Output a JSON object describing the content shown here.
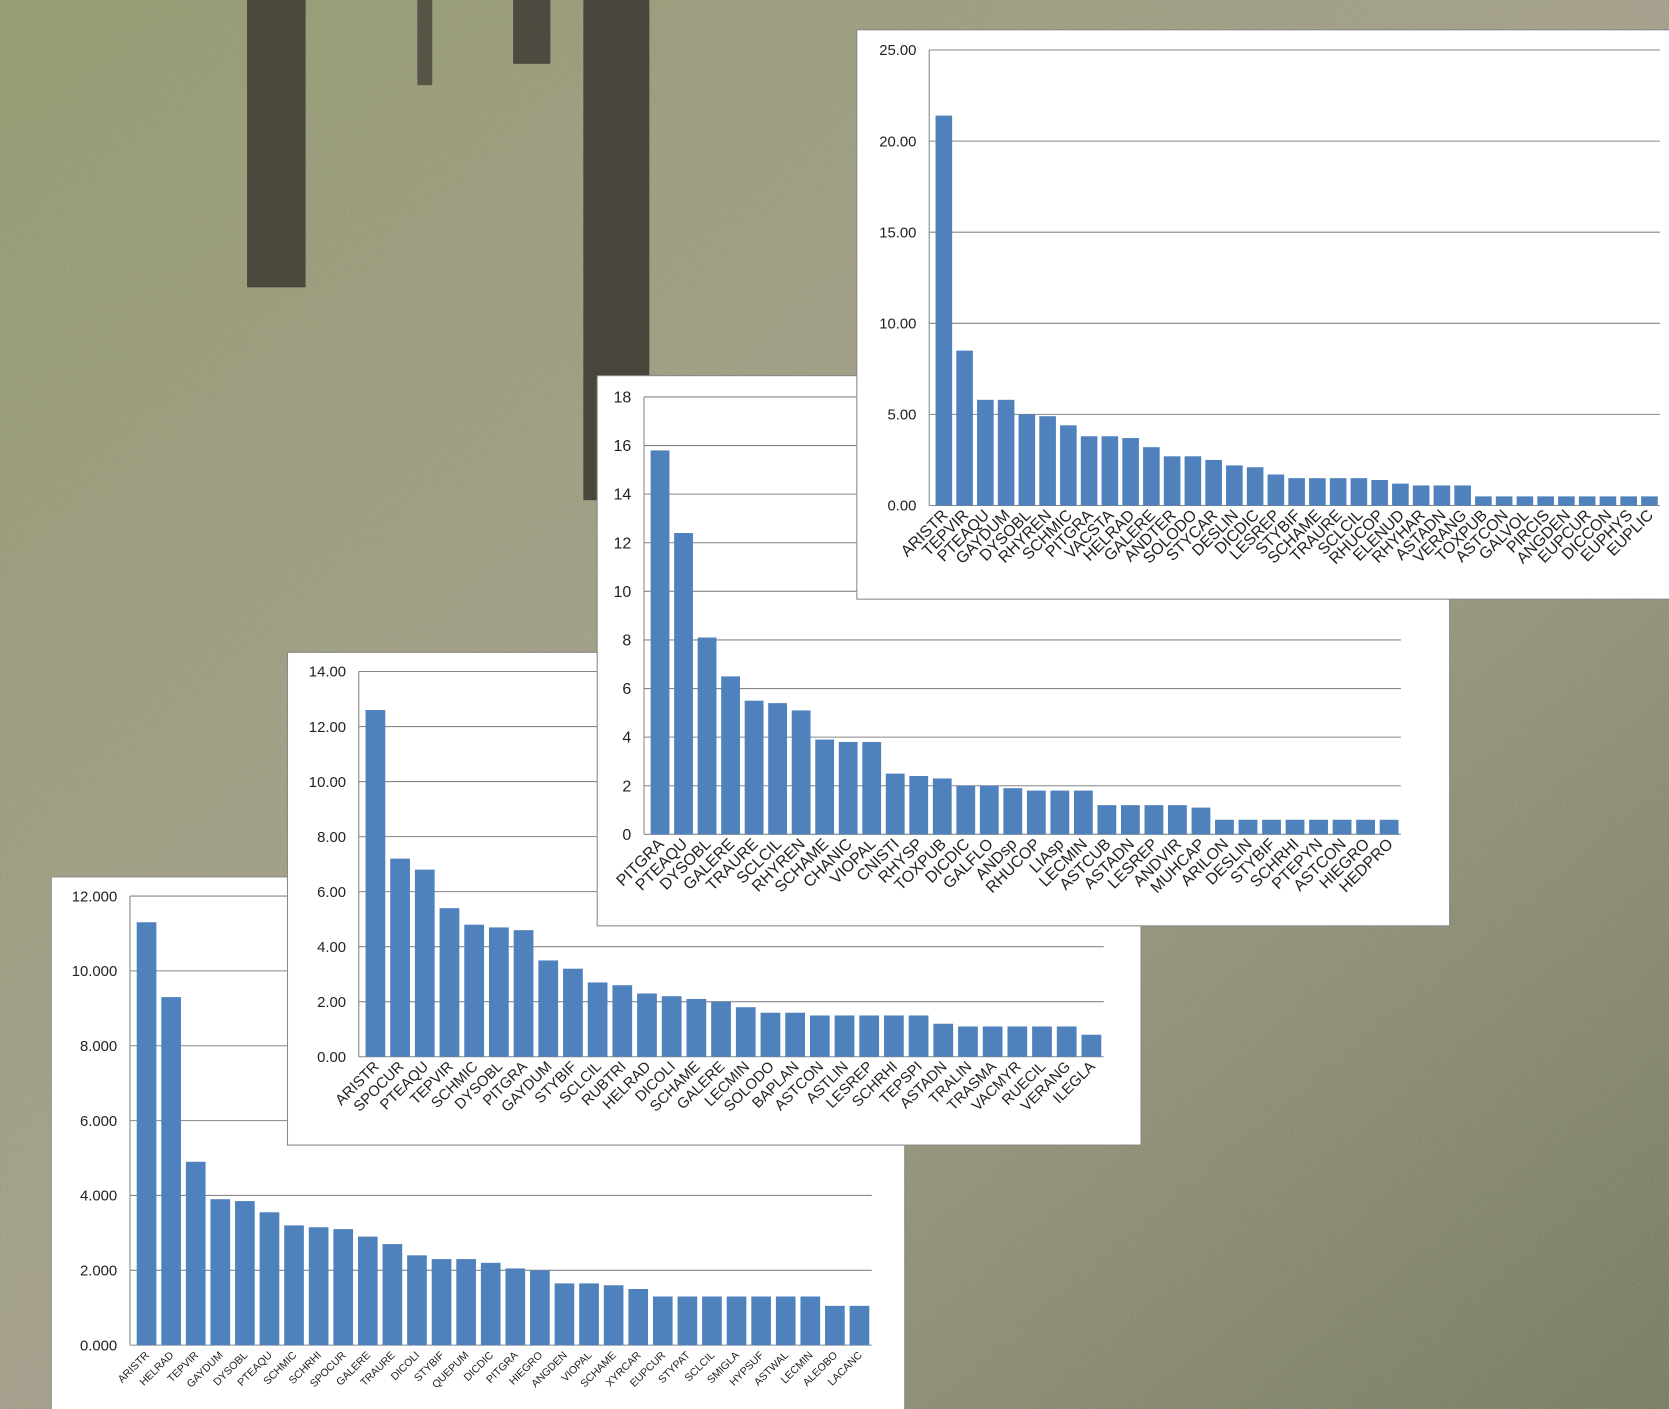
{
  "chart_data": [
    {
      "type": "bar",
      "color": "#4f81bd",
      "grid": true,
      "categories": [
        "ARISTR",
        "TEPVIR",
        "PTEAQU",
        "GAYDUM",
        "DYSOBL",
        "RHYREN",
        "SCHMIC",
        "PITGRA",
        "VACSTA",
        "HELRAD",
        "GALERE",
        "ANDTER",
        "SOLODO",
        "STYCAR",
        "DESLIN",
        "DICDIC",
        "LESREP",
        "STYBIF",
        "SCHAME",
        "TRAURE",
        "SCLCIL",
        "RHUCOP",
        "ELENUD",
        "RHYHAR",
        "ASTADN",
        "VERANG",
        "TOXPUB",
        "ASTCON",
        "GALVOL",
        "PIRCIS",
        "ANGDEN",
        "EUPCUR",
        "DICCON",
        "EUPHYS",
        "EUPLIC"
      ],
      "values": [
        21.4,
        8.5,
        5.8,
        5.8,
        5.0,
        4.9,
        4.4,
        3.8,
        3.8,
        3.7,
        3.2,
        2.7,
        2.7,
        2.5,
        2.2,
        2.1,
        1.7,
        1.5,
        1.5,
        1.5,
        1.5,
        1.4,
        1.2,
        1.1,
        1.1,
        1.1,
        0.5,
        0.5,
        0.5,
        0.5,
        0.5,
        0.5,
        0.5,
        0.5,
        0.5
      ],
      "ylim": [
        0,
        25
      ],
      "yticks": [
        {
          "value": 0,
          "label": "0.00"
        },
        {
          "value": 5,
          "label": "5.00"
        },
        {
          "value": 10,
          "label": "10.00"
        },
        {
          "value": 15,
          "label": "15.00"
        },
        {
          "value": 20,
          "label": "20.00"
        },
        {
          "value": 25,
          "label": "25.00"
        }
      ]
    },
    {
      "type": "bar",
      "color": "#4f81bd",
      "grid": true,
      "categories": [
        "PITGRA",
        "PTEAQU",
        "DYSOBL",
        "GALERE",
        "TRAURE",
        "SCLCIL",
        "RHYREN",
        "SCHAME",
        "CHANIC",
        "VIOPAL",
        "CNISTI",
        "RHYSP",
        "TOXPUB",
        "DICDIC",
        "GALFLO",
        "ANDsp",
        "RHUCOP",
        "LIAsp",
        "LECMIN",
        "ASTCUB",
        "ASTADN",
        "LESREP",
        "ANDVIR",
        "MUHCAP",
        "ARILON",
        "DESLIN",
        "STYBIF",
        "SCHRHI",
        "PTEPYN",
        "ASTCON",
        "HIEGRO",
        "HEDPRO"
      ],
      "values": [
        15.8,
        12.4,
        8.1,
        6.5,
        5.5,
        5.4,
        5.1,
        3.9,
        3.8,
        3.8,
        2.5,
        2.4,
        2.3,
        2.0,
        2.0,
        1.9,
        1.8,
        1.8,
        1.8,
        1.2,
        1.2,
        1.2,
        1.2,
        1.1,
        0.6,
        0.6,
        0.6,
        0.6,
        0.6,
        0.6,
        0.6,
        0.6
      ],
      "ylim": [
        0,
        18
      ],
      "yticks": [
        0,
        2,
        4,
        6,
        8,
        10,
        12,
        14,
        16,
        18
      ]
    },
    {
      "type": "bar",
      "color": "#4f81bd",
      "grid": true,
      "categories": [
        "ARISTR",
        "SPOCUR",
        "PTEAQU",
        "TEPVIR",
        "SCHMIC",
        "DYSOBL",
        "PITGRA",
        "GAYDUM",
        "STYBIF",
        "SCLCIL",
        "RUBTRI",
        "HELRAD",
        "DICOLI",
        "SCHAME",
        "GALERE",
        "LECMIN",
        "SOLODO",
        "BAPLAN",
        "ASTCON",
        "ASTLIN",
        "LESREP",
        "SCHRHI",
        "TEPSPI",
        "ASTADN",
        "TRALIN",
        "TRASMA",
        "VACMYR",
        "RUECIL",
        "VERANG",
        "ILEGLA"
      ],
      "values": [
        12.6,
        7.2,
        6.8,
        5.4,
        4.8,
        4.7,
        4.6,
        3.5,
        3.2,
        2.7,
        2.6,
        2.3,
        2.2,
        2.1,
        2.0,
        1.8,
        1.6,
        1.6,
        1.5,
        1.5,
        1.5,
        1.5,
        1.5,
        1.2,
        1.1,
        1.1,
        1.1,
        1.1,
        1.1,
        0.8
      ],
      "ylim": [
        0,
        14
      ],
      "yticks": [
        {
          "value": 0,
          "label": "0.00"
        },
        {
          "value": 2,
          "label": "2.00"
        },
        {
          "value": 4,
          "label": "4.00"
        },
        {
          "value": 6,
          "label": "6.00"
        },
        {
          "value": 8,
          "label": "8.00"
        },
        {
          "value": 10,
          "label": "10.00"
        },
        {
          "value": 12,
          "label": "12.00"
        },
        {
          "value": 14,
          "label": "14.00"
        }
      ]
    },
    {
      "type": "bar",
      "color": "#4f81bd",
      "grid": true,
      "categories": [
        "ARISTR",
        "HELRAD",
        "TEPVIR",
        "GAYDUM",
        "DYSOBL",
        "PTEAQU",
        "SCHMIC",
        "SCHRHI",
        "SPOCUR",
        "GALERE",
        "TRAURE",
        "DICOLI",
        "STYBIF",
        "QUEPUM",
        "DICDIC",
        "PITGRA",
        "HIEGRO",
        "ANGDEN",
        "VIOPAL",
        "SCHAME",
        "XYRCAR",
        "EUPCUR",
        "STYPAT",
        "SCLCIL",
        "SMIGLA",
        "HYPSUF",
        "ASTWAL",
        "LECMIN",
        "ALEOBO",
        "LACANC"
      ],
      "values": [
        11.3,
        9.3,
        4.9,
        3.9,
        3.85,
        3.55,
        3.2,
        3.15,
        3.1,
        2.9,
        2.7,
        2.4,
        2.3,
        2.3,
        2.2,
        2.05,
        2.0,
        1.65,
        1.65,
        1.6,
        1.5,
        1.3,
        1.3,
        1.3,
        1.3,
        1.3,
        1.3,
        1.3,
        1.05,
        1.05
      ],
      "ylim": [
        0,
        12
      ],
      "yticks": [
        {
          "value": 0,
          "label": "0.000"
        },
        {
          "value": 2,
          "label": "2.000"
        },
        {
          "value": 4,
          "label": "4.000"
        },
        {
          "value": 6,
          "label": "6.000"
        },
        {
          "value": 8,
          "label": "8.000"
        },
        {
          "value": 10,
          "label": "10.000"
        },
        {
          "value": 12,
          "label": "12.000"
        }
      ]
    }
  ]
}
